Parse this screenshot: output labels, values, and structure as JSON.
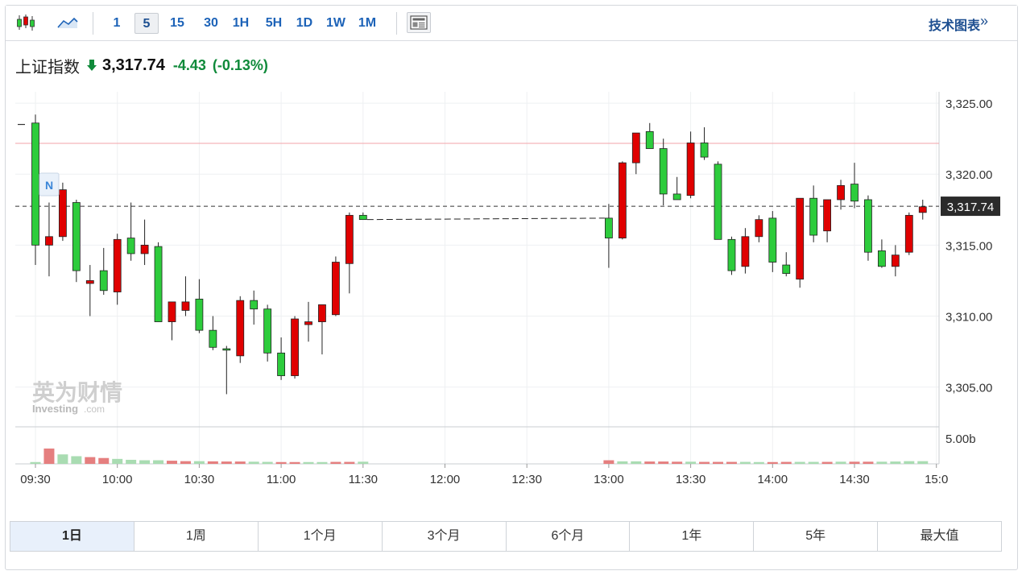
{
  "toolbar": {
    "candle_icon": "candlestick-icon",
    "line_icon": "line-chart-icon",
    "news_icon": "news-panel-icon",
    "intervals": [
      "1",
      "5",
      "15",
      "30",
      "1H",
      "5H",
      "1D",
      "1W",
      "1M"
    ],
    "active_interval": "5",
    "tech_chart_label": "技术图表",
    "tech_chart_arrow": "»"
  },
  "quote": {
    "name": "上证指数",
    "direction_icon": "down-arrow-icon",
    "price": "3,317.74",
    "change": "-4.43",
    "change_pct": "(-0.13%)",
    "down_color": "#0f8a3a"
  },
  "chart_data": {
    "type": "candlestick",
    "up_color": "#e00000",
    "down_color": "#2dcc3c",
    "x_ticks": [
      "09:30",
      "10:00",
      "10:30",
      "11:00",
      "11:30",
      "12:00",
      "12:30",
      "13:00",
      "13:30",
      "14:00",
      "14:30",
      "15:0"
    ],
    "y_ticks": [
      "3,325.00",
      "3,320.00",
      "3,315.00",
      "3,310.00",
      "3,305.00"
    ],
    "y_tick_values": [
      3325,
      3320,
      3315,
      3310,
      3305
    ],
    "ylim": [
      3302.2,
      3325.8
    ],
    "last_price_label": "3,317.74",
    "last_price": 3317.74,
    "prev_close": 3322.17,
    "volume_label": "5.00b",
    "marker_label": "N",
    "watermark_cn": "英为财情",
    "watermark_en": "Investing",
    "watermark_suffix": ".com",
    "grid": true,
    "morning": [
      {
        "t": "09:30",
        "o": 3323.6,
        "h": 3324.2,
        "l": 3313.6,
        "c": 3315.0
      },
      {
        "t": "09:35",
        "o": 3315.0,
        "h": 3318.0,
        "l": 3312.8,
        "c": 3315.6
      },
      {
        "t": "09:40",
        "o": 3315.6,
        "h": 3319.4,
        "l": 3315.3,
        "c": 3318.9
      },
      {
        "t": "09:45",
        "o": 3318.0,
        "h": 3318.2,
        "l": 3312.4,
        "c": 3313.2
      },
      {
        "t": "09:50",
        "o": 3312.3,
        "h": 3313.6,
        "l": 3310.0,
        "c": 3312.5
      },
      {
        "t": "09:55",
        "o": 3313.2,
        "h": 3314.8,
        "l": 3311.5,
        "c": 3311.8
      },
      {
        "t": "10:00",
        "o": 3311.7,
        "h": 3315.8,
        "l": 3310.8,
        "c": 3315.4
      },
      {
        "t": "10:05",
        "o": 3315.5,
        "h": 3318.0,
        "l": 3313.9,
        "c": 3314.4
      },
      {
        "t": "10:10",
        "o": 3314.4,
        "h": 3316.8,
        "l": 3313.6,
        "c": 3315.0
      },
      {
        "t": "10:15",
        "o": 3314.9,
        "h": 3315.2,
        "l": 3309.6,
        "c": 3309.6
      },
      {
        "t": "10:20",
        "o": 3309.6,
        "h": 3311.0,
        "l": 3308.3,
        "c": 3311.0
      },
      {
        "t": "10:25",
        "o": 3310.4,
        "h": 3312.8,
        "l": 3310.0,
        "c": 3311.0
      },
      {
        "t": "10:30",
        "o": 3311.2,
        "h": 3312.6,
        "l": 3308.8,
        "c": 3309.0
      },
      {
        "t": "10:35",
        "o": 3309.0,
        "h": 3310.0,
        "l": 3307.6,
        "c": 3307.8
      },
      {
        "t": "10:40",
        "o": 3307.7,
        "h": 3307.9,
        "l": 3304.5,
        "c": 3307.6
      },
      {
        "t": "10:45",
        "o": 3307.2,
        "h": 3311.4,
        "l": 3306.7,
        "c": 3311.1
      },
      {
        "t": "10:50",
        "o": 3311.1,
        "h": 3311.8,
        "l": 3309.4,
        "c": 3310.5
      },
      {
        "t": "10:55",
        "o": 3310.5,
        "h": 3310.8,
        "l": 3306.8,
        "c": 3307.4
      },
      {
        "t": "11:00",
        "o": 3307.4,
        "h": 3308.5,
        "l": 3305.5,
        "c": 3305.8
      },
      {
        "t": "11:05",
        "o": 3305.8,
        "h": 3310.0,
        "l": 3305.6,
        "c": 3309.8
      },
      {
        "t": "11:10",
        "o": 3309.4,
        "h": 3311.0,
        "l": 3308.2,
        "c": 3309.6
      },
      {
        "t": "11:15",
        "o": 3309.6,
        "h": 3310.8,
        "l": 3307.3,
        "c": 3310.8
      },
      {
        "t": "11:20",
        "o": 3310.1,
        "h": 3314.2,
        "l": 3310.0,
        "c": 3313.8
      },
      {
        "t": "11:25",
        "o": 3313.7,
        "h": 3317.3,
        "l": 3311.6,
        "c": 3317.1
      },
      {
        "t": "11:30",
        "o": 3317.1,
        "h": 3317.3,
        "l": 3316.8,
        "c": 3316.8
      }
    ],
    "afternoon": [
      {
        "t": "13:00",
        "o": 3316.9,
        "h": 3317.9,
        "l": 3313.4,
        "c": 3315.5
      },
      {
        "t": "13:05",
        "o": 3315.5,
        "h": 3320.9,
        "l": 3315.4,
        "c": 3320.8
      },
      {
        "t": "13:10",
        "o": 3320.8,
        "h": 3322.9,
        "l": 3320.0,
        "c": 3322.9
      },
      {
        "t": "13:15",
        "o": 3323.0,
        "h": 3323.6,
        "l": 3321.8,
        "c": 3321.8
      },
      {
        "t": "13:20",
        "o": 3321.8,
        "h": 3322.5,
        "l": 3317.8,
        "c": 3318.6
      },
      {
        "t": "13:25",
        "o": 3318.6,
        "h": 3319.8,
        "l": 3318.2,
        "c": 3318.2
      },
      {
        "t": "13:30",
        "o": 3318.5,
        "h": 3323.0,
        "l": 3318.3,
        "c": 3322.2
      },
      {
        "t": "13:35",
        "o": 3322.2,
        "h": 3323.3,
        "l": 3321.0,
        "c": 3321.2
      },
      {
        "t": "13:40",
        "o": 3320.7,
        "h": 3320.9,
        "l": 3315.4,
        "c": 3315.4
      },
      {
        "t": "13:45",
        "o": 3315.4,
        "h": 3315.6,
        "l": 3312.9,
        "c": 3313.2
      },
      {
        "t": "13:50",
        "o": 3313.5,
        "h": 3316.2,
        "l": 3313.0,
        "c": 3315.6
      },
      {
        "t": "13:55",
        "o": 3315.6,
        "h": 3317.1,
        "l": 3315.2,
        "c": 3316.8
      },
      {
        "t": "14:00",
        "o": 3316.9,
        "h": 3317.4,
        "l": 3313.1,
        "c": 3313.8
      },
      {
        "t": "14:05",
        "o": 3313.6,
        "h": 3314.5,
        "l": 3312.8,
        "c": 3313.0
      },
      {
        "t": "14:10",
        "o": 3312.6,
        "h": 3318.3,
        "l": 3312.0,
        "c": 3318.3
      },
      {
        "t": "14:15",
        "o": 3318.3,
        "h": 3319.2,
        "l": 3315.2,
        "c": 3315.7
      },
      {
        "t": "14:20",
        "o": 3316.0,
        "h": 3318.2,
        "l": 3315.2,
        "c": 3318.2
      },
      {
        "t": "14:25",
        "o": 3318.2,
        "h": 3319.6,
        "l": 3317.5,
        "c": 3319.2
      },
      {
        "t": "14:30",
        "o": 3319.3,
        "h": 3320.8,
        "l": 3317.6,
        "c": 3318.1
      },
      {
        "t": "14:35",
        "o": 3318.2,
        "h": 3318.5,
        "l": 3313.9,
        "c": 3314.5
      },
      {
        "t": "14:40",
        "o": 3314.6,
        "h": 3315.4,
        "l": 3313.4,
        "c": 3313.5
      },
      {
        "t": "14:45",
        "o": 3313.5,
        "h": 3315.0,
        "l": 3312.8,
        "c": 3314.3
      },
      {
        "t": "14:50",
        "o": 3314.5,
        "h": 3317.3,
        "l": 3314.3,
        "c": 3317.1
      },
      {
        "t": "14:55",
        "o": 3317.3,
        "h": 3318.2,
        "l": 3316.8,
        "c": 3317.7
      }
    ],
    "volume_morning": [
      0.2,
      1.7,
      1.05,
      0.85,
      0.75,
      0.65,
      0.55,
      0.45,
      0.4,
      0.4,
      0.35,
      0.3,
      0.3,
      0.28,
      0.26,
      0.26,
      0.24,
      0.22,
      0.2,
      0.2,
      0.2,
      0.2,
      0.22,
      0.22,
      0.24
    ],
    "volume_afternoon": [
      0.4,
      0.28,
      0.28,
      0.26,
      0.26,
      0.24,
      0.24,
      0.22,
      0.22,
      0.22,
      0.22,
      0.2,
      0.2,
      0.22,
      0.22,
      0.22,
      0.22,
      0.24,
      0.24,
      0.24,
      0.24,
      0.26,
      0.3,
      0.3
    ],
    "volume_morning_dir": [
      "d",
      "u",
      "d",
      "d",
      "u",
      "u",
      "d",
      "d",
      "d",
      "d",
      "u",
      "u",
      "d",
      "u",
      "u",
      "u",
      "d",
      "d",
      "u",
      "u",
      "d",
      "d",
      "u",
      "u",
      "d"
    ],
    "volume_afternoon_dir": [
      "u",
      "d",
      "d",
      "u",
      "u",
      "u",
      "d",
      "u",
      "u",
      "u",
      "d",
      "d",
      "u",
      "u",
      "d",
      "d",
      "u",
      "d",
      "u",
      "u",
      "d",
      "d",
      "d",
      "d"
    ],
    "volume_max": 5.0
  },
  "ranges": {
    "items": [
      "1日",
      "1周",
      "1个月",
      "3个月",
      "6个月",
      "1年",
      "5年",
      "最大值"
    ],
    "active": "1日"
  }
}
